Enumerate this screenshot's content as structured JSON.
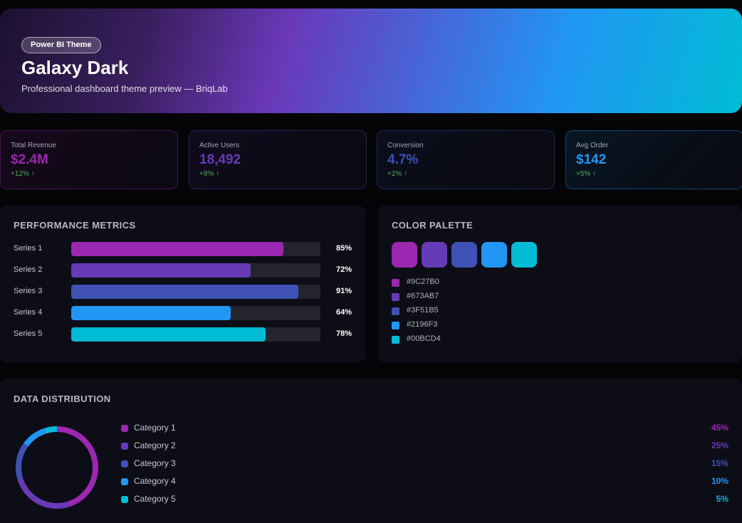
{
  "hero": {
    "badge": "Power BI Theme",
    "title": "Galaxy Dark",
    "subtitle": "Professional dashboard theme preview — BriqLab"
  },
  "kpis": [
    {
      "label": "Total Revenue",
      "value": "$2.4M",
      "delta": "+12% ↑",
      "color": "#9C27B0"
    },
    {
      "label": "Active Users",
      "value": "18,492",
      "delta": "+8% ↑",
      "color": "#673AB7"
    },
    {
      "label": "Conversion",
      "value": "4.7%",
      "delta": "+2% ↑",
      "color": "#3F51B5"
    },
    {
      "label": "Avg Order",
      "value": "$142",
      "delta": "+5% ↑",
      "color": "#2196F3"
    }
  ],
  "performance": {
    "title": "PERFORMANCE METRICS",
    "rows": [
      {
        "label": "Series 1",
        "pct_label": "85%",
        "value": 85,
        "color": "#9C27B0"
      },
      {
        "label": "Series 2",
        "pct_label": "72%",
        "value": 72,
        "color": "#673AB7"
      },
      {
        "label": "Series 3",
        "pct_label": "91%",
        "value": 91,
        "color": "#3F51B5"
      },
      {
        "label": "Series 4",
        "pct_label": "64%",
        "value": 64,
        "color": "#2196F3"
      },
      {
        "label": "Series 5",
        "pct_label": "78%",
        "value": 78,
        "color": "#00BCD4"
      }
    ]
  },
  "palette": {
    "title": "COLOR PALETTE",
    "colors": [
      "#9C27B0",
      "#673AB7",
      "#3F51B5",
      "#2196F3",
      "#00BCD4"
    ],
    "hex_labels": [
      "#9C27B0",
      "#673AB7",
      "#3F51B5",
      "#2196F3",
      "#00BCD4"
    ]
  },
  "distribution": {
    "title": "DATA DISTRIBUTION",
    "items": [
      {
        "label": "Category 1",
        "pct_label": "45%",
        "value": 45,
        "color": "#9C27B0"
      },
      {
        "label": "Category 2",
        "pct_label": "25%",
        "value": 25,
        "color": "#673AB7"
      },
      {
        "label": "Category 3",
        "pct_label": "15%",
        "value": 15,
        "color": "#3F51B5"
      },
      {
        "label": "Category 4",
        "pct_label": "10%",
        "value": 10,
        "color": "#2196F3"
      },
      {
        "label": "Category 5",
        "pct_label": "5%",
        "value": 5,
        "color": "#00BCD4"
      }
    ]
  }
}
